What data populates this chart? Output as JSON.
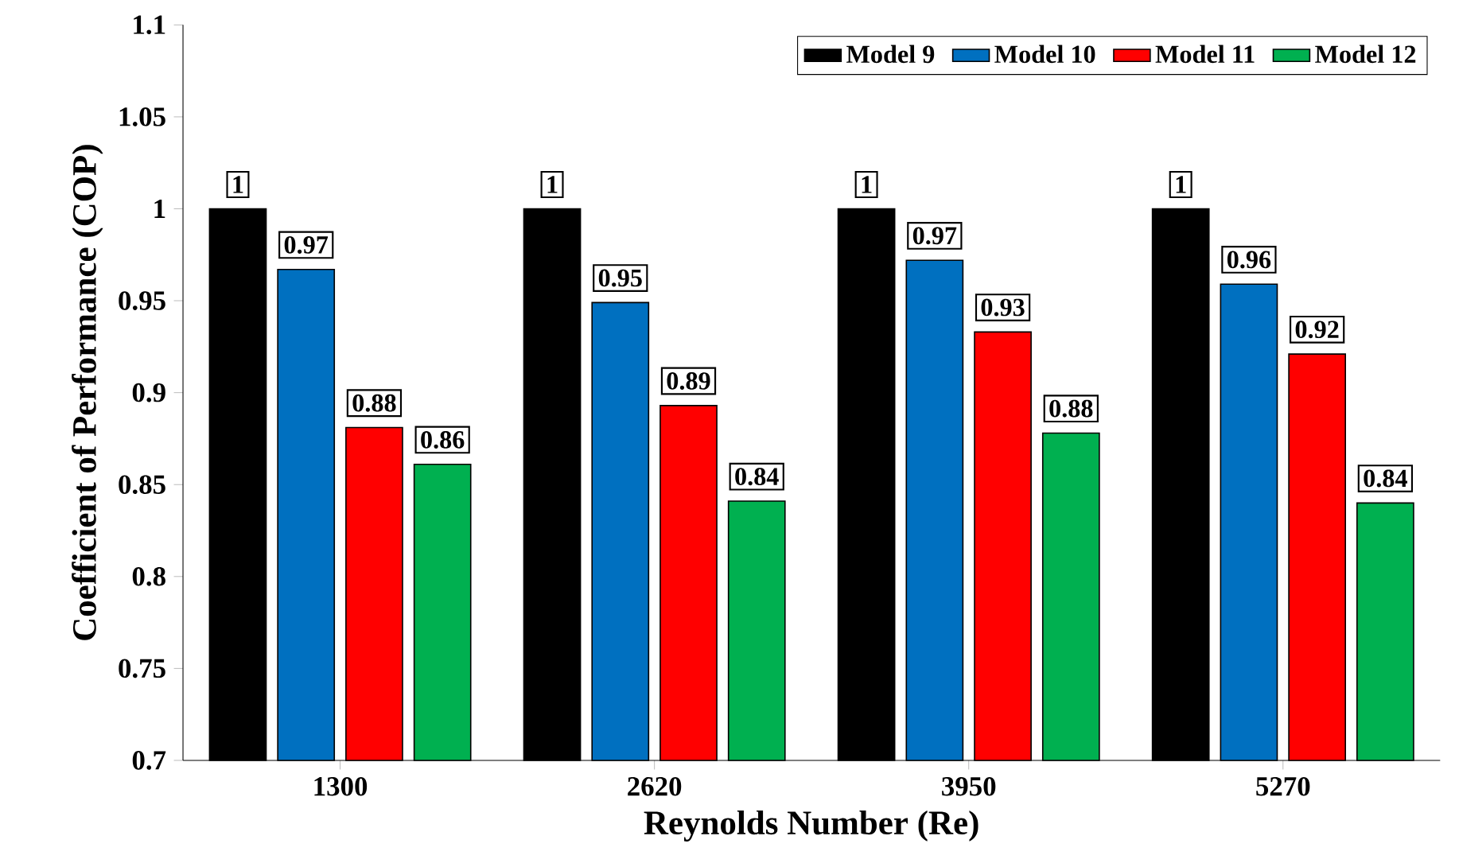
{
  "chart_data": {
    "type": "bar",
    "xlabel": "Reynolds Number (Re)",
    "ylabel": "Coefficient of Performance (COP)",
    "categories": [
      "1300",
      "2620",
      "3950",
      "5270"
    ],
    "series": [
      {
        "name": "Model 9",
        "color": "#000000",
        "values": [
          1.0,
          1.0,
          1.0,
          1.0
        ],
        "value_labels": [
          "1",
          "1",
          "1",
          "1"
        ]
      },
      {
        "name": "Model 10",
        "color": "#0070c0",
        "values": [
          0.967,
          0.949,
          0.972,
          0.959
        ],
        "value_labels": [
          "0.97",
          "0.95",
          "0.97",
          "0.96"
        ]
      },
      {
        "name": "Model 11",
        "color": "#ff0000",
        "values": [
          0.881,
          0.893,
          0.933,
          0.921
        ],
        "value_labels": [
          "0.88",
          "0.89",
          "0.93",
          "0.92"
        ]
      },
      {
        "name": "Model 12",
        "color": "#00b050",
        "values": [
          0.861,
          0.841,
          0.878,
          0.84
        ],
        "value_labels": [
          "0.86",
          "0.84",
          "0.88",
          "0.84"
        ]
      }
    ],
    "ylim": [
      0.7,
      1.1
    ],
    "yticks": [
      0.7,
      0.75,
      0.8,
      0.85,
      0.9,
      0.95,
      1,
      1.05,
      1.1
    ],
    "legend": "top right"
  }
}
